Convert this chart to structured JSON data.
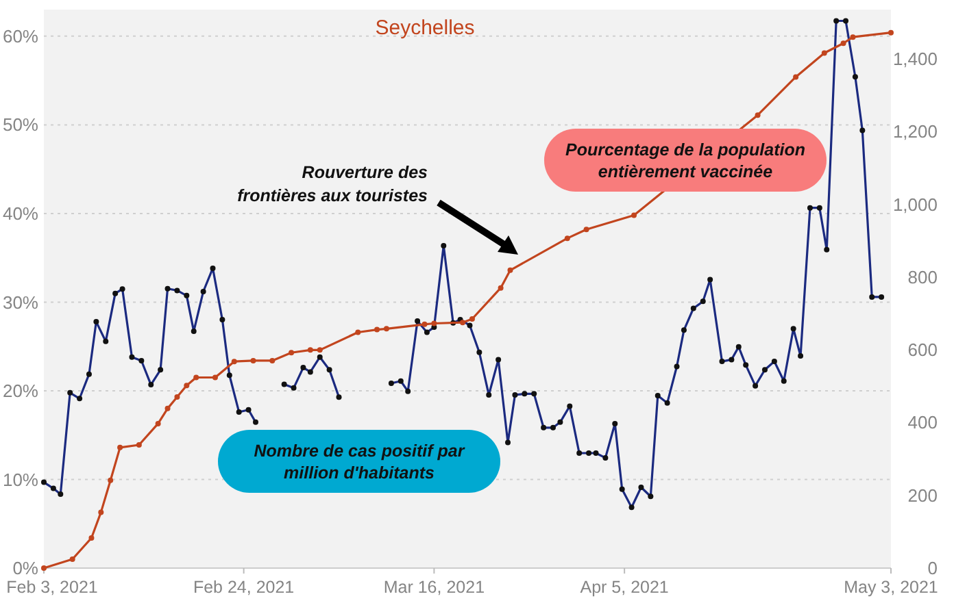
{
  "chart_data": {
    "type": "line",
    "title": "Seychelles",
    "xlim": [
      "2021-02-03",
      "2021-05-03"
    ],
    "xticks": [
      {
        "value": "2021-02-03",
        "label": "Feb 3, 2021"
      },
      {
        "value": "2021-02-24",
        "label": "Feb 24, 2021"
      },
      {
        "value": "2021-03-16",
        "label": "Mar 16, 2021"
      },
      {
        "value": "2021-04-05",
        "label": "Apr 5, 2021"
      },
      {
        "value": "2021-05-03",
        "label": "May 3, 2021"
      }
    ],
    "ylim": [
      0,
      63
    ],
    "yticks": [
      {
        "value": 0,
        "label": "0%"
      },
      {
        "value": 10,
        "label": "10%"
      },
      {
        "value": 20,
        "label": "20%"
      },
      {
        "value": 30,
        "label": "30%"
      },
      {
        "value": 40,
        "label": "40%"
      },
      {
        "value": 50,
        "label": "50%"
      },
      {
        "value": 60,
        "label": "60%"
      }
    ],
    "y2lim": [
      0,
      1535
    ],
    "y2ticks": [
      0,
      200,
      400,
      600,
      800,
      {
        "value": 1000,
        "label": "1,000"
      },
      {
        "value": 1200,
        "label": "1,200"
      },
      {
        "value": 1400,
        "label": "1,400"
      }
    ],
    "grid": "y",
    "marker": "circle",
    "annotations": [
      "Rouverture des frontières aux touristes"
    ],
    "series": [
      {
        "name": "Pourcentage de la population entièrement vaccinée",
        "color": "#c2451e",
        "axis": "y",
        "x": [
          "2021-02-03",
          "2021-02-06",
          "2021-02-08",
          "2021-02-09",
          "2021-02-10",
          "2021-02-11",
          "2021-02-13",
          "2021-02-15",
          "2021-02-16",
          "2021-02-17",
          "2021-02-18",
          "2021-02-19",
          "2021-02-21",
          "2021-02-23",
          "2021-02-25",
          "2021-02-27",
          "2021-03-01",
          "2021-03-03",
          "2021-03-04",
          "2021-03-08",
          "2021-03-10",
          "2021-03-11",
          "2021-03-15",
          "2021-03-16",
          "2021-03-19",
          "2021-03-20",
          "2021-03-23",
          "2021-03-24",
          "2021-03-30",
          "2021-04-01",
          "2021-04-06",
          "2021-04-19",
          "2021-04-23",
          "2021-04-26",
          "2021-04-28",
          "2021-04-29",
          "2021-05-03"
        ],
        "values": [
          0,
          1.0,
          3.4,
          6.3,
          9.9,
          13.6,
          13.9,
          16.3,
          18.0,
          19.3,
          20.6,
          21.5,
          21.5,
          23.3,
          23.4,
          23.4,
          24.3,
          24.6,
          24.6,
          26.6,
          26.9,
          27.0,
          27.5,
          27.6,
          27.7,
          28.1,
          31.6,
          33.6,
          37.2,
          38.2,
          39.8,
          51.1,
          55.4,
          58.1,
          59.2,
          59.9,
          60.4
        ]
      },
      {
        "name": "Nombre de cas positif par million d'habitants",
        "color": "#1b2a80",
        "axis": "y2",
        "x": [
          "2021-02-03",
          "2021-02-04",
          "2021-02-04T18:00",
          "2021-02-05T18:00",
          "2021-02-06T18:00",
          "2021-02-07T18:00",
          "2021-02-08T12:00",
          "2021-02-09T12:00",
          "2021-02-10T12:00",
          "2021-02-11T06:00",
          "2021-02-12T06:00",
          "2021-02-13T06:00",
          "2021-02-14T06:00",
          "2021-02-15T06:00",
          "2021-02-16",
          "2021-02-17",
          "2021-02-18",
          "2021-02-18T18:00",
          "2021-02-19T18:00",
          "2021-02-20T18:00",
          "2021-02-21T18:00",
          "2021-02-22T12:00",
          "2021-02-23T12:00",
          "2021-02-24T12:00",
          "2021-02-25T06:00",
          "2021-02-26T06:00",
          "2021-02-27T06:00",
          "2021-02-28T06:00",
          "2021-03-01T06:00",
          "2021-03-02T06:00",
          "2021-03-03",
          "2021-03-04",
          "2021-03-05",
          "2021-03-06",
          "2021-03-07",
          "2021-03-08",
          "2021-03-09",
          "2021-03-10",
          "2021-03-11T12:00",
          "2021-03-12T12:00",
          "2021-03-13T06:00",
          "2021-03-14T06:00",
          "2021-03-15T06:00",
          "2021-03-16",
          "2021-03-17",
          "2021-03-18",
          "2021-03-18T18:00",
          "2021-03-19T18:00",
          "2021-03-20T18:00",
          "2021-03-21T18:00",
          "2021-03-22T18:00",
          "2021-03-23T18:00",
          "2021-03-24T12:00",
          "2021-03-25T12:00",
          "2021-03-26T12:00",
          "2021-03-27T12:00",
          "2021-03-28T12:00",
          "2021-03-29T06:00",
          "2021-03-30T06:00",
          "2021-03-31T06:00",
          "2021-04-01T06:00",
          "2021-04-02",
          "2021-04-03",
          "2021-04-04",
          "2021-04-04T18:00",
          "2021-04-05T18:00",
          "2021-04-06T18:00",
          "2021-04-07T18:00",
          "2021-04-08T12:00",
          "2021-04-09T12:00",
          "2021-04-10T12:00",
          "2021-04-11T06:00",
          "2021-04-12T06:00",
          "2021-04-13T06:00",
          "2021-04-14",
          "2021-04-15T06:00",
          "2021-04-16T06:00",
          "2021-04-17",
          "2021-04-17T18:00",
          "2021-04-18T18:00",
          "2021-04-19T18:00",
          "2021-04-20T18:00",
          "2021-04-21T18:00",
          "2021-04-22T18:00",
          "2021-04-23T12:00",
          "2021-04-24T12:00",
          "2021-04-25T12:00",
          "2021-04-26T06:00",
          "2021-04-27T06:00",
          "2021-04-28T06:00",
          "2021-04-29T06:00",
          "2021-04-30",
          "2021-05-01",
          "2021-05-02"
        ],
        "values": [
          236,
          219,
          203,
          482,
          466,
          533,
          677,
          623,
          755,
          767,
          580,
          570,
          504,
          545,
          768,
          763,
          749,
          651,
          760,
          824,
          683,
          530,
          429,
          435,
          401,
          null,
          null,
          505,
          495,
          551,
          539,
          580,
          545,
          470,
          null,
          null,
          null,
          null,
          508,
          514,
          486,
          679,
          648,
          662,
          886,
          674,
          683,
          667,
          593,
          476,
          573,
          345,
          476,
          479,
          479,
          386,
          386,
          401,
          445,
          316,
          316,
          316,
          303,
          397,
          217,
          167,
          222,
          197,
          474,
          454,
          554,
          654,
          714,
          733,
          793,
          568,
          573,
          608,
          558,
          501,
          545,
          568,
          514,
          658,
          583,
          990,
          990,
          875,
          1504,
          1504,
          1350,
          1203,
          745,
          745
        ]
      }
    ]
  }
}
